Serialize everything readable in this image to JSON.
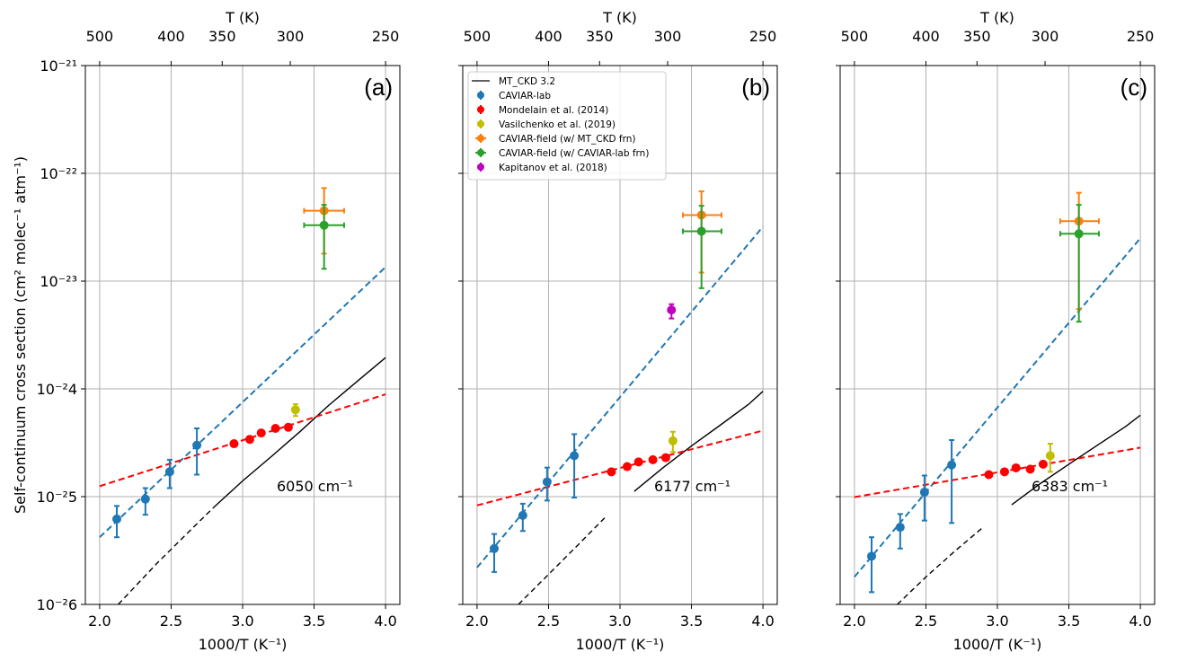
{
  "figure": {
    "ylabel": "Self-continuum cross section (cm² molec⁻¹ atm⁻¹)",
    "xlabel": "1000/T (K⁻¹)",
    "top_xlabel": "T (K)"
  },
  "colors": {
    "mtckd": "#000000",
    "caviar_lab": "#1f77b4",
    "mondelain": "#ff0000",
    "vasilchenko": "#bfbf00",
    "caviar_field_mtckd": "#ff7f0e",
    "caviar_field_lab": "#2ca02c",
    "kapitanov": "#bf00bf",
    "grid": "#b0b0b0"
  },
  "legend": {
    "entries": [
      {
        "label": "MT_CKD 3.2",
        "kind": "line",
        "color": "#000000"
      },
      {
        "label": "CAVIAR-lab",
        "kind": "marker",
        "color": "#1f77b4"
      },
      {
        "label": "Mondelain et al. (2014)",
        "kind": "marker",
        "color": "#ff0000"
      },
      {
        "label": "Vasilchenko et al. (2019)",
        "kind": "marker",
        "color": "#bfbf00"
      },
      {
        "label": "CAVIAR-field (w/ MT_CKD frn)",
        "kind": "cross",
        "color": "#ff7f0e"
      },
      {
        "label": "CAVIAR-field (w/ CAVIAR-lab frn)",
        "kind": "cross",
        "color": "#2ca02c"
      },
      {
        "label": "Kapitanov et al. (2018)",
        "kind": "marker",
        "color": "#bf00bf"
      }
    ]
  },
  "chart_data": [
    {
      "type": "scatter",
      "panel_label": "(a)",
      "wavenumber_label": "6050 cm⁻¹",
      "xlabel": "1000/T (K⁻¹)",
      "ylabel": "Self-continuum cross section (cm² molec⁻¹ atm⁻¹)",
      "xlim": [
        1.9,
        4.1
      ],
      "ylim": [
        1e-26,
        1e-21
      ],
      "yscale": "log",
      "xticks": [
        2.0,
        2.5,
        3.0,
        3.5,
        4.0
      ],
      "top_axis": {
        "label": "T (K)",
        "ticks": [
          500,
          400,
          350,
          300,
          250
        ]
      },
      "grid": true,
      "legend": false,
      "series": [
        {
          "name": "MT_CKD 3.2",
          "kind": "curve",
          "color": "#000000",
          "x": [
            2.13,
            2.4,
            2.6,
            2.8,
            3.0,
            3.2,
            3.4,
            3.6,
            3.8,
            4.0
          ],
          "y": [
            1e-26,
            2.4e-26,
            4.4e-26,
            8e-26,
            1.4e-25,
            2.35e-25,
            4e-25,
            7e-25,
            1.17e-24,
            1.95e-24
          ],
          "dashed_below_x": 2.8
        },
        {
          "name": "CAVIAR-lab",
          "kind": "points",
          "color": "#1f77b4",
          "x": [
            2.12,
            2.32,
            2.49,
            2.68
          ],
          "y": [
            6.2e-26,
            9.5e-26,
            1.7e-25,
            3e-25
          ],
          "y_err_low": [
            4.2e-26,
            6.8e-26,
            1.2e-25,
            1.6e-25
          ],
          "y_err_high": [
            8.2e-26,
            1.2e-25,
            2.2e-25,
            4.3e-25
          ]
        },
        {
          "name": "Mondelain et al. (2014)",
          "kind": "points",
          "color": "#ff0000",
          "x": [
            2.94,
            3.05,
            3.13,
            3.23,
            3.32
          ],
          "y": [
            3.1e-25,
            3.4e-25,
            3.9e-25,
            4.3e-25,
            4.4e-25
          ]
        },
        {
          "name": "Vasilchenko et al. (2019)",
          "kind": "points",
          "color": "#bfbf00",
          "x": [
            3.37
          ],
          "y": [
            6.4e-25
          ],
          "y_err_low": [
            5.6e-25
          ],
          "y_err_high": [
            7.2e-25
          ]
        },
        {
          "name": "CAVIAR-field (w/ MT_CKD frn)",
          "kind": "points",
          "color": "#ff7f0e",
          "x": [
            3.57
          ],
          "y": [
            4.5e-23
          ],
          "y_err_low": [
            1.8e-23
          ],
          "y_err_high": [
            7.3e-23
          ],
          "x_err_low": [
            3.43
          ],
          "x_err_high": [
            3.71
          ]
        },
        {
          "name": "CAVIAR-field (w/ CAVIAR-lab frn)",
          "kind": "points",
          "color": "#2ca02c",
          "x": [
            3.57
          ],
          "y": [
            3.3e-23
          ],
          "y_err_low": [
            1.3e-23
          ],
          "y_err_high": [
            5.1e-23
          ],
          "x_err_low": [
            3.43
          ],
          "x_err_high": [
            3.71
          ]
        },
        {
          "name": "CAVIAR-lab fit",
          "kind": "trend",
          "color": "#1f77b4",
          "x": [
            2.0,
            4.0
          ],
          "y": [
            4.2e-26,
            1.35e-23
          ]
        },
        {
          "name": "Mondelain fit",
          "kind": "trend",
          "color": "#ff0000",
          "x": [
            2.0,
            4.0
          ],
          "y": [
            1.25e-25,
            8.9e-25
          ]
        }
      ]
    },
    {
      "type": "scatter",
      "panel_label": "(b)",
      "wavenumber_label": "6177 cm⁻¹",
      "xlabel": "1000/T (K⁻¹)",
      "xlim": [
        1.9,
        4.1
      ],
      "ylim": [
        1e-26,
        1e-21
      ],
      "yscale": "log",
      "xticks": [
        2.0,
        2.5,
        3.0,
        3.5,
        4.0
      ],
      "top_axis": {
        "label": "T (K)",
        "ticks": [
          500,
          400,
          350,
          300,
          250
        ]
      },
      "grid": true,
      "legend": true,
      "legend_position": "upper-left",
      "series": [
        {
          "name": "MT_CKD 3.2",
          "kind": "curve",
          "color": "#000000",
          "x": [
            2.29,
            2.5,
            2.7,
            2.9,
            3.1,
            3.3,
            3.5,
            3.7,
            3.9,
            4.0
          ],
          "y": [
            1e-26,
            1.9e-26,
            3.5e-26,
            6.5e-26,
            1.12e-25,
            1.85e-25,
            2.95e-25,
            4.6e-25,
            7.2e-25,
            9.5e-25
          ],
          "dashed_below_x": 2.95
        },
        {
          "name": "CAVIAR-lab",
          "kind": "points",
          "color": "#1f77b4",
          "x": [
            2.12,
            2.32,
            2.49,
            2.68
          ],
          "y": [
            3.3e-26,
            6.7e-26,
            1.37e-25,
            2.4e-25
          ],
          "y_err_low": [
            2e-26,
            4.8e-26,
            9.2e-26,
            9.8e-26
          ],
          "y_err_high": [
            4.5e-26,
            8.6e-26,
            1.86e-25,
            3.8e-25
          ]
        },
        {
          "name": "Mondelain et al. (2014)",
          "kind": "points",
          "color": "#ff0000",
          "x": [
            2.94,
            3.05,
            3.13,
            3.23,
            3.32
          ],
          "y": [
            1.7e-25,
            1.9e-25,
            2.1e-25,
            2.2e-25,
            2.3e-25
          ]
        },
        {
          "name": "Vasilchenko et al. (2019)",
          "kind": "points",
          "color": "#bfbf00",
          "x": [
            3.37
          ],
          "y": [
            3.3e-25
          ],
          "y_err_low": [
            2.6e-25
          ],
          "y_err_high": [
            4e-25
          ]
        },
        {
          "name": "CAVIAR-field (w/ MT_CKD frn)",
          "kind": "points",
          "color": "#ff7f0e",
          "x": [
            3.57
          ],
          "y": [
            4.1e-23
          ],
          "y_err_low": [
            1.2e-23
          ],
          "y_err_high": [
            6.8e-23
          ],
          "x_err_low": [
            3.44
          ],
          "x_err_high": [
            3.71
          ]
        },
        {
          "name": "CAVIAR-field (w/ CAVIAR-lab frn)",
          "kind": "points",
          "color": "#2ca02c",
          "x": [
            3.57
          ],
          "y": [
            2.9e-23
          ],
          "y_err_low": [
            8.6e-24
          ],
          "y_err_high": [
            5e-23
          ],
          "x_err_low": [
            3.44
          ],
          "x_err_high": [
            3.71
          ]
        },
        {
          "name": "Kapitanov et al. (2018)",
          "kind": "points",
          "color": "#bf00bf",
          "x": [
            3.36
          ],
          "y": [
            5.4e-24
          ],
          "y_err_low": [
            4.5e-24
          ],
          "y_err_high": [
            6.1e-24
          ]
        },
        {
          "name": "CAVIAR-lab fit",
          "kind": "trend",
          "color": "#1f77b4",
          "x": [
            2.0,
            4.0
          ],
          "y": [
            2.2e-26,
            3.2e-23
          ]
        },
        {
          "name": "Mondelain fit",
          "kind": "trend",
          "color": "#ff0000",
          "x": [
            2.0,
            4.0
          ],
          "y": [
            8.3e-26,
            4.1e-25
          ]
        }
      ]
    },
    {
      "type": "scatter",
      "panel_label": "(c)",
      "wavenumber_label": "6383 cm⁻¹",
      "xlabel": "1000/T (K⁻¹)",
      "xlim": [
        1.9,
        4.1
      ],
      "ylim": [
        1e-26,
        1e-21
      ],
      "yscale": "log",
      "xticks": [
        2.0,
        2.5,
        3.0,
        3.5,
        4.0
      ],
      "top_axis": {
        "label": "T (K)",
        "ticks": [
          500,
          400,
          350,
          300,
          250
        ]
      },
      "grid": true,
      "legend": false,
      "series": [
        {
          "name": "MT_CKD 3.2",
          "kind": "curve",
          "color": "#000000",
          "x": [
            2.3,
            2.5,
            2.7,
            2.9,
            3.1,
            3.3,
            3.5,
            3.7,
            3.9,
            4.0
          ],
          "y": [
            1e-26,
            1.8e-26,
            3.1e-26,
            5.2e-26,
            8.4e-26,
            1.32e-25,
            2e-25,
            3e-25,
            4.5e-25,
            5.7e-25
          ],
          "dashed_below_x": 2.95
        },
        {
          "name": "CAVIAR-lab",
          "kind": "points",
          "color": "#1f77b4",
          "x": [
            2.12,
            2.32,
            2.49,
            2.68
          ],
          "y": [
            2.8e-26,
            5.2e-26,
            1.1e-25,
            1.97e-25
          ],
          "y_err_low": [
            1.3e-26,
            3.3e-26,
            6e-26,
            5.7e-26
          ],
          "y_err_high": [
            4.2e-26,
            6.9e-26,
            1.57e-25,
            3.35e-25
          ]
        },
        {
          "name": "Mondelain et al. (2014)",
          "kind": "points",
          "color": "#ff0000",
          "x": [
            2.94,
            3.05,
            3.13,
            3.23,
            3.32
          ],
          "y": [
            1.6e-25,
            1.7e-25,
            1.85e-25,
            1.8e-25,
            2e-25
          ]
        },
        {
          "name": "Vasilchenko et al. (2019)",
          "kind": "points",
          "color": "#bfbf00",
          "x": [
            3.37
          ],
          "y": [
            2.4e-25
          ],
          "y_err_low": [
            1.7e-25
          ],
          "y_err_high": [
            3.1e-25
          ]
        },
        {
          "name": "CAVIAR-field (w/ MT_CKD frn)",
          "kind": "points",
          "color": "#ff7f0e",
          "x": [
            3.57
          ],
          "y": [
            3.6e-23
          ],
          "y_err_low": [
            5.5e-24
          ],
          "y_err_high": [
            6.6e-23
          ],
          "x_err_low": [
            3.44
          ],
          "x_err_high": [
            3.71
          ]
        },
        {
          "name": "CAVIAR-field (w/ CAVIAR-lab frn)",
          "kind": "points",
          "color": "#2ca02c",
          "x": [
            3.57
          ],
          "y": [
            2.75e-23
          ],
          "y_err_low": [
            4.2e-24
          ],
          "y_err_high": [
            5.1e-23
          ],
          "x_err_low": [
            3.44
          ],
          "x_err_high": [
            3.71
          ]
        },
        {
          "name": "CAVIAR-lab fit",
          "kind": "trend",
          "color": "#1f77b4",
          "x": [
            2.0,
            4.0
          ],
          "y": [
            1.8e-26,
            2.5e-23
          ]
        },
        {
          "name": "Mondelain fit",
          "kind": "trend",
          "color": "#ff0000",
          "x": [
            2.0,
            4.0
          ],
          "y": [
            9.9e-26,
            2.85e-25
          ]
        }
      ]
    }
  ]
}
